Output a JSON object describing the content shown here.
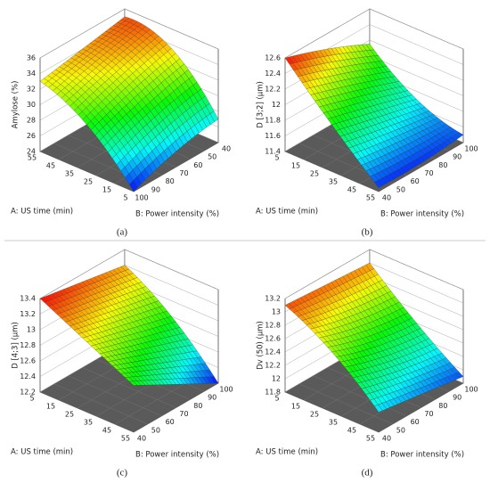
{
  "chart_data": [
    {
      "type": "surface",
      "panel_label": "(a)",
      "zlabel": "Amylose (%)",
      "xlabel": "A: US time (min)",
      "ylabel": "B: Power intensity (%)",
      "x": [
        5,
        30,
        55
      ],
      "y": [
        40,
        70,
        100
      ],
      "z": [
        [
          27,
          26,
          24
        ],
        [
          33.5,
          32,
          30
        ],
        [
          35,
          34,
          33
        ]
      ],
      "xlim": [
        5,
        55
      ],
      "ylim": [
        40,
        100
      ],
      "zlim": [
        24,
        36
      ],
      "xticks": [
        5,
        15,
        25,
        35,
        45,
        55
      ],
      "yticks": [
        40,
        50,
        60,
        70,
        80,
        90,
        100
      ],
      "zticks": [
        24,
        26,
        28,
        30,
        32,
        34,
        36
      ]
    },
    {
      "type": "surface",
      "panel_label": "(b)",
      "zlabel": "D [3;2]  (µm)",
      "xlabel": "A: US time (min)",
      "ylabel": "B: Power intensity (%)",
      "x": [
        5,
        30,
        55
      ],
      "y": [
        40,
        70,
        100
      ],
      "z": [
        [
          12.6,
          12.4,
          12.15
        ],
        [
          12.0,
          11.85,
          11.7
        ],
        [
          11.45,
          11.45,
          11.5
        ]
      ],
      "xlim": [
        5,
        55
      ],
      "ylim": [
        40,
        100
      ],
      "zlim": [
        11.4,
        12.6
      ],
      "xticks": [
        5,
        15,
        25,
        35,
        45,
        55
      ],
      "yticks": [
        40,
        50,
        60,
        70,
        80,
        90,
        100
      ],
      "zticks": [
        11.4,
        11.6,
        11.8,
        12,
        12.2,
        12.4,
        12.6
      ]
    },
    {
      "type": "surface",
      "panel_label": "(c)",
      "zlabel": "D [4;3]  (µm)",
      "xlabel": "A: US time (min)",
      "ylabel": "B: Power intensity (%)",
      "x": [
        5,
        30,
        55
      ],
      "y": [
        40,
        70,
        100
      ],
      "z": [
        [
          13.4,
          13.3,
          13.2
        ],
        [
          13.1,
          12.95,
          12.8
        ],
        [
          12.8,
          12.5,
          12.2
        ]
      ],
      "xlim": [
        5,
        55
      ],
      "ylim": [
        40,
        100
      ],
      "zlim": [
        12.2,
        13.4
      ],
      "xticks": [
        5,
        15,
        25,
        35,
        45,
        55
      ],
      "yticks": [
        40,
        50,
        60,
        70,
        80,
        90,
        100
      ],
      "zticks": [
        12.2,
        12.4,
        12.6,
        12.8,
        13,
        13.2,
        13.4
      ]
    },
    {
      "type": "surface",
      "panel_label": "(d)",
      "zlabel": "Dv (50)  (µm)",
      "xlabel": "A: US time (min)",
      "ylabel": "B: Power intensity (%)",
      "x": [
        5,
        30,
        55
      ],
      "y": [
        40,
        70,
        100
      ],
      "z": [
        [
          13.1,
          13.05,
          13.0
        ],
        [
          12.7,
          12.5,
          12.4
        ],
        [
          12.1,
          12.0,
          11.9
        ]
      ],
      "xlim": [
        5,
        55
      ],
      "ylim": [
        40,
        100
      ],
      "zlim": [
        11.8,
        13.2
      ],
      "xticks": [
        5,
        15,
        25,
        35,
        45,
        55
      ],
      "yticks": [
        40,
        50,
        60,
        70,
        80,
        90,
        100
      ],
      "zticks": [
        11.8,
        12,
        12.2,
        12.4,
        12.6,
        12.8,
        13,
        13.2
      ]
    }
  ]
}
